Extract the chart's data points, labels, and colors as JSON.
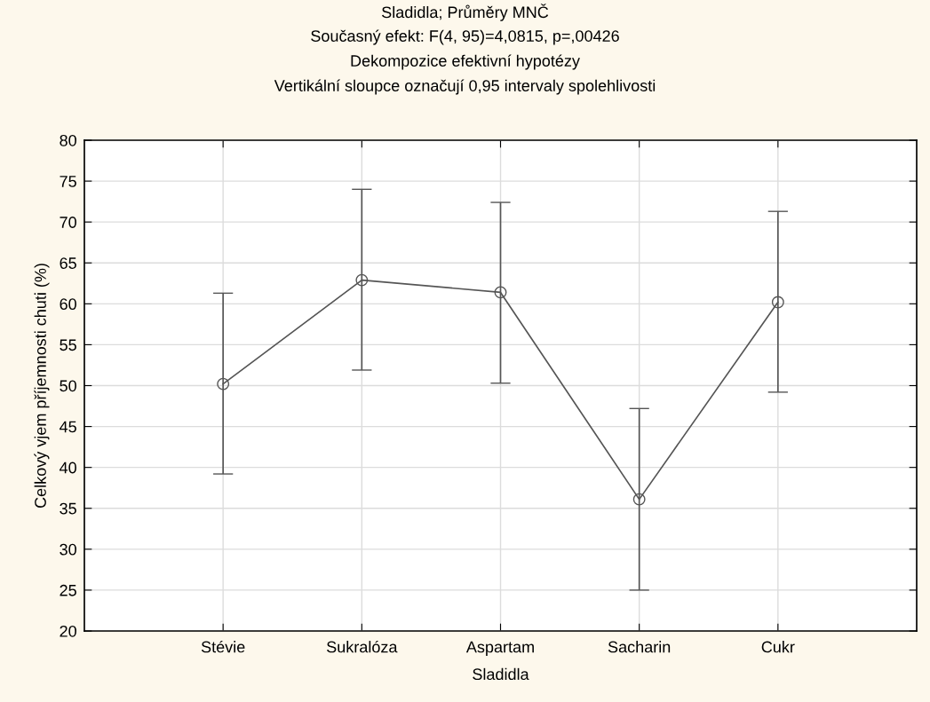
{
  "chart_data": {
    "type": "line",
    "title": "Sladidla; Průměry MNČ",
    "subtitle": "Současný efekt: F(4, 95)=4,0815, p=,00426",
    "annotations": [
      "Dekompozice efektivní hypotézy",
      "Vertikální sloupce označují 0,95 intervaly spolehlivosti"
    ],
    "xlabel": "Sladidla",
    "ylabel": "Celkový vjem příjemnosti chuti (%)",
    "categories": [
      "Stévie",
      "Sukralóza",
      "Aspartam",
      "Sacharin",
      "Cukr"
    ],
    "series": [
      {
        "color": "#555555",
        "values": [
          50.2,
          62.9,
          61.4,
          36.1,
          60.2
        ],
        "errors": [
          [
            39.2,
            61.3
          ],
          [
            51.9,
            74.0
          ],
          [
            50.3,
            72.4
          ],
          [
            25.0,
            47.2
          ],
          [
            49.2,
            71.3
          ]
        ]
      }
    ],
    "ylim": [
      20,
      80
    ],
    "yticks": [
      20,
      25,
      30,
      35,
      40,
      45,
      50,
      55,
      60,
      65,
      70,
      75,
      80
    ],
    "grid": true,
    "marker": "circle",
    "line_style": "solid"
  }
}
